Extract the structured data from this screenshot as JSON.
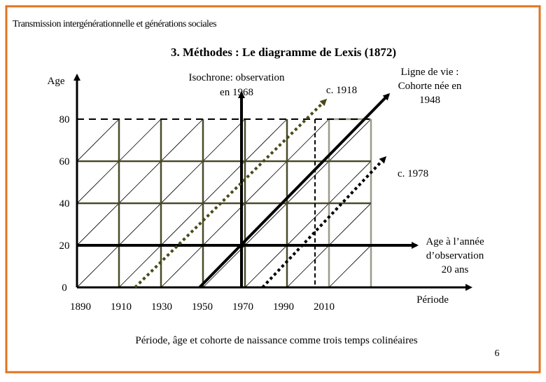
{
  "header": {
    "title": "Transmission intergénérationnelle et générations sociales"
  },
  "slide": {
    "title": "3. Méthodes : Le diagramme de Lexis (1872)",
    "page_number": "6",
    "caption": "Période, âge et cohorte de naissance comme trois temps colinéaires"
  },
  "diagram": {
    "y_axis_label": "Age",
    "x_axis_label": "Période",
    "age_labels": [
      "80",
      "60",
      "40",
      "20",
      "0"
    ],
    "year_labels": [
      "1890",
      "1910",
      "1930",
      "1950",
      "1970",
      "1990",
      "2010"
    ],
    "annotations": {
      "isochrone": [
        "Isochrone: observation",
        "en 1968"
      ],
      "cohort_1918": "c. 1918",
      "lifeline": [
        "Ligne de vie :",
        "Cohorte née en",
        "1948"
      ],
      "cohort_1978": "c. 1978",
      "age_20": [
        "Age à l’année",
        "d’observation",
        "20 ans"
      ]
    }
  }
}
